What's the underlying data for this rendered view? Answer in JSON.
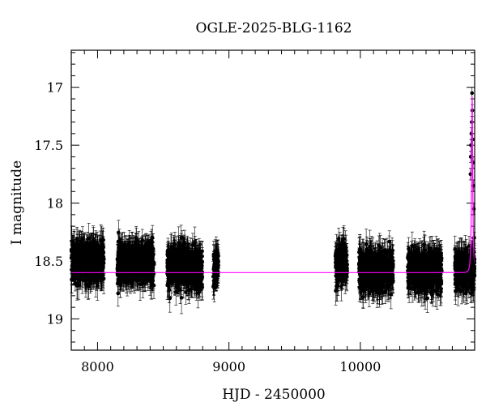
{
  "chart_data": {
    "type": "scatter",
    "title": "OGLE-2025-BLG-1162",
    "xlabel": "HJD - 2450000",
    "ylabel": "I magnitude",
    "xlim": [
      7800,
      10870
    ],
    "ylim": [
      19.27,
      16.68
    ],
    "y_inverted": true,
    "x_ticks": [
      8000,
      9000,
      10000
    ],
    "y_ticks": [
      17,
      17.5,
      18,
      18.5,
      19
    ],
    "x_minor_step": 100,
    "y_minor_step": 0.1,
    "grid": false,
    "point_color": "#000000",
    "model_color": "#ff00ff",
    "observing_seasons": [
      {
        "start": 7800,
        "end": 8050,
        "mean_mag": 18.5,
        "scatter": 0.1
      },
      {
        "start": 8150,
        "end": 8430,
        "mean_mag": 18.52,
        "scatter": 0.1
      },
      {
        "start": 8530,
        "end": 8800,
        "mean_mag": 18.55,
        "scatter": 0.1
      },
      {
        "start": 8880,
        "end": 8920,
        "mean_mag": 18.55,
        "scatter": 0.09
      },
      {
        "start": 9810,
        "end": 9900,
        "mean_mag": 18.52,
        "scatter": 0.1
      },
      {
        "start": 9990,
        "end": 10250,
        "mean_mag": 18.58,
        "scatter": 0.1
      },
      {
        "start": 10360,
        "end": 10620,
        "mean_mag": 18.58,
        "scatter": 0.1
      },
      {
        "start": 10720,
        "end": 10870,
        "mean_mag": 18.58,
        "scatter": 0.09
      }
    ],
    "peak_points": [
      {
        "x": 10838,
        "y": 17.75
      },
      {
        "x": 10840,
        "y": 17.6
      },
      {
        "x": 10842,
        "y": 17.5
      },
      {
        "x": 10845,
        "y": 17.4
      },
      {
        "x": 10848,
        "y": 17.3
      },
      {
        "x": 10850,
        "y": 17.05
      },
      {
        "x": 10852,
        "y": 17.2
      },
      {
        "x": 10855,
        "y": 17.45
      },
      {
        "x": 10858,
        "y": 17.65
      },
      {
        "x": 10861,
        "y": 17.85
      },
      {
        "x": 10864,
        "y": 18.05
      },
      {
        "x": 10867,
        "y": 18.3
      }
    ],
    "model": {
      "baseline_mag": 18.6,
      "peak_time": 10851,
      "peak_mag": 17.08,
      "timescale": 10
    }
  }
}
